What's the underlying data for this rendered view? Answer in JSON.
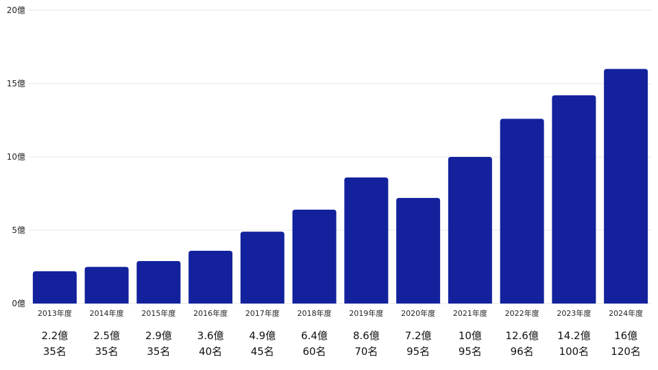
{
  "chart_data": {
    "type": "bar",
    "title": "",
    "xlabel": "",
    "ylabel": "",
    "ylim": [
      0,
      20
    ],
    "yticks": [
      0,
      5,
      10,
      15,
      20
    ],
    "ytick_labels": [
      "0億",
      "5億",
      "10億",
      "15億",
      "20億"
    ],
    "grid": true,
    "bar_color": "#13229c",
    "categories": [
      "2013年度",
      "2014年度",
      "2015年度",
      "2016年度",
      "2017年度",
      "2018年度",
      "2019年度",
      "2020年度",
      "2021年度",
      "2022年度",
      "2023年度",
      "2024年度"
    ],
    "values": [
      2.2,
      2.5,
      2.9,
      3.6,
      4.9,
      6.4,
      8.6,
      7.2,
      10,
      12.6,
      14.2,
      16
    ],
    "value_labels": [
      "2.2億",
      "2.5億",
      "2.9億",
      "3.6億",
      "4.9億",
      "6.4億",
      "8.6億",
      "7.2億",
      "10億",
      "12.6億",
      "14.2億",
      "16億"
    ],
    "employees": [
      "35名",
      "35名",
      "35名",
      "40名",
      "45名",
      "60名",
      "70名",
      "95名",
      "95名",
      "96名",
      "100名",
      "120名"
    ]
  }
}
